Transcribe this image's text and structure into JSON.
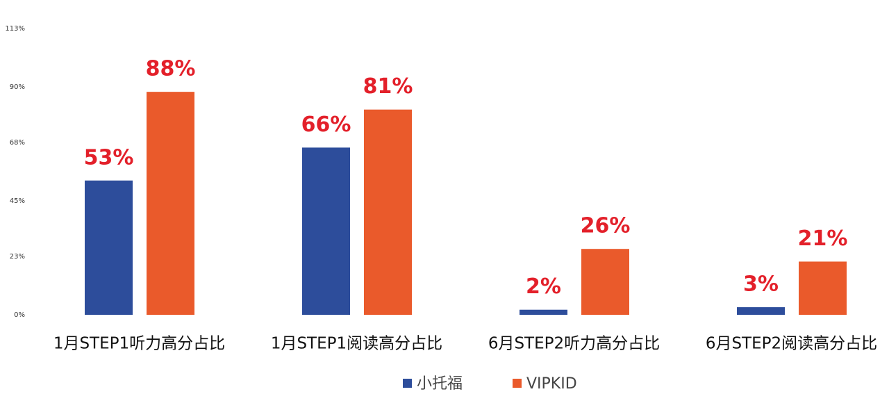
{
  "chart_data": {
    "type": "bar",
    "categories": [
      "1月STEP1听力高分占比",
      "1月STEP1阅读高分占比",
      "6月STEP2听力高分占比",
      "6月STEP2阅读高分占比"
    ],
    "series": [
      {
        "name": "小托福",
        "color": "#2d4d9b",
        "values": [
          53,
          66,
          2,
          3
        ],
        "value_labels": [
          "53%",
          "66%",
          "2%",
          "3%"
        ]
      },
      {
        "name": "VIPKID",
        "color": "#ea5a2b",
        "values": [
          88,
          81,
          26,
          21
        ],
        "value_labels": [
          "88%",
          "81%",
          "26%",
          "21%"
        ]
      }
    ],
    "ylim": [
      0,
      113
    ],
    "yticks": [
      {
        "value": 0,
        "label": "0%"
      },
      {
        "value": 23,
        "label": "23%"
      },
      {
        "value": 45,
        "label": "45%"
      },
      {
        "value": 68,
        "label": "68%"
      },
      {
        "value": 90,
        "label": "90%"
      },
      {
        "value": 113,
        "label": "113%"
      }
    ],
    "grid": false,
    "legend": "bottom"
  }
}
